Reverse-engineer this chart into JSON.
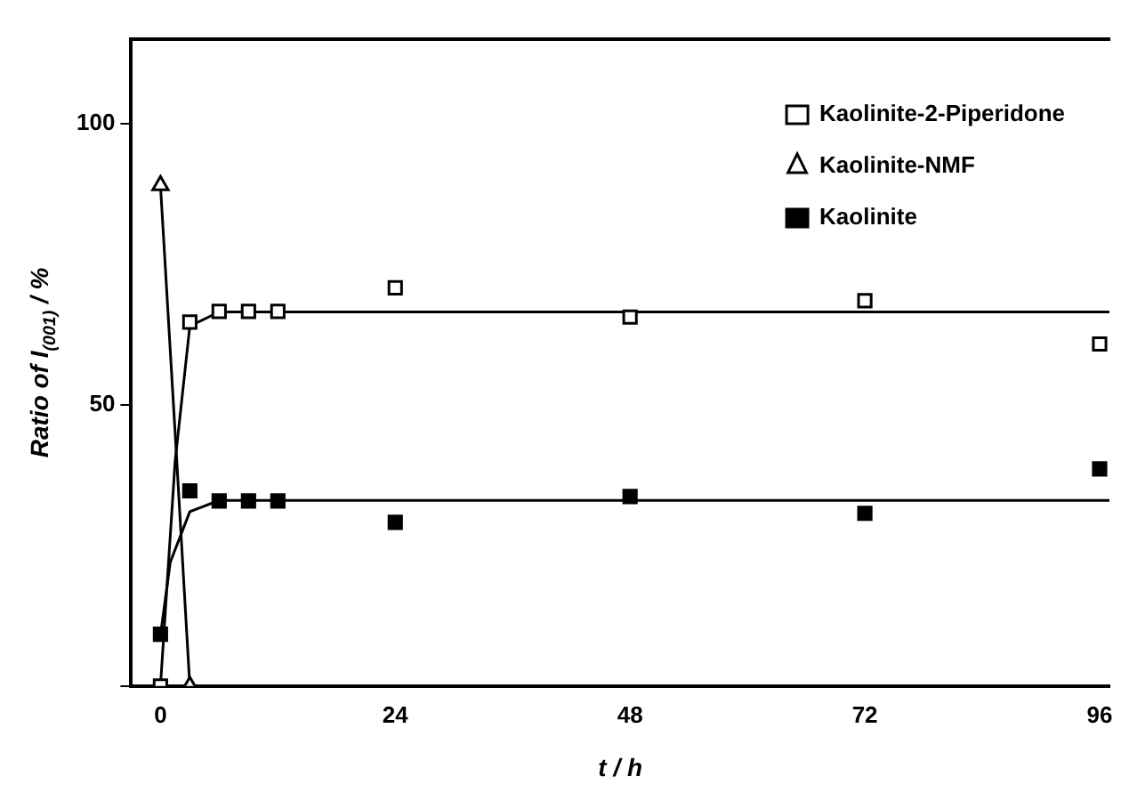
{
  "chart_data": {
    "type": "scatter",
    "xlabel": "t / h",
    "ylabel": "Ratio of I$_{(001)}$ / %",
    "xlim": [
      -3,
      97
    ],
    "ylim": [
      0,
      115
    ],
    "xticks": [
      0,
      24,
      48,
      72,
      96
    ],
    "yticks": [
      {
        "value": 0,
        "label": null
      },
      50,
      100
    ],
    "grid": false,
    "legend": "top right",
    "series": [
      {
        "name": "Kaolinite-2-Piperidone",
        "color": "#ffffff",
        "marker": "square",
        "x": [
          0,
          3,
          6,
          9,
          12,
          24,
          48,
          72,
          96
        ],
        "values": [
          0,
          64.7,
          66.6,
          66.6,
          66.6,
          70.8,
          65.6,
          68.5,
          60.8
        ]
      },
      {
        "name": "Kaolinite-NMF",
        "color": "#ffffff",
        "marker": "triangle",
        "x": [
          0,
          3
        ],
        "values": [
          89,
          0
        ]
      },
      {
        "name": "Kaolinite",
        "color": "#000000",
        "marker": "square",
        "x": [
          0,
          3,
          6,
          9,
          12,
          24,
          48,
          72,
          96
        ],
        "values": [
          9.2,
          34.7,
          32.9,
          32.9,
          32.9,
          29.1,
          33.7,
          30.7,
          38.6
        ]
      },
      {
        "type": "line",
        "color": "#000000",
        "marker": "none",
        "x": [
          0,
          1.5,
          3,
          6,
          97
        ],
        "values": [
          0,
          40,
          64,
          66.5,
          66.5
        ]
      },
      {
        "type": "line",
        "color": "#000000",
        "marker": "none",
        "x": [
          0,
          1.5,
          3
        ],
        "values": [
          89,
          45,
          0
        ]
      },
      {
        "type": "line",
        "color": "#000000",
        "marker": "none",
        "x": [
          0,
          1,
          3,
          6,
          97
        ],
        "values": [
          9,
          22,
          31,
          33,
          33
        ]
      }
    ]
  }
}
